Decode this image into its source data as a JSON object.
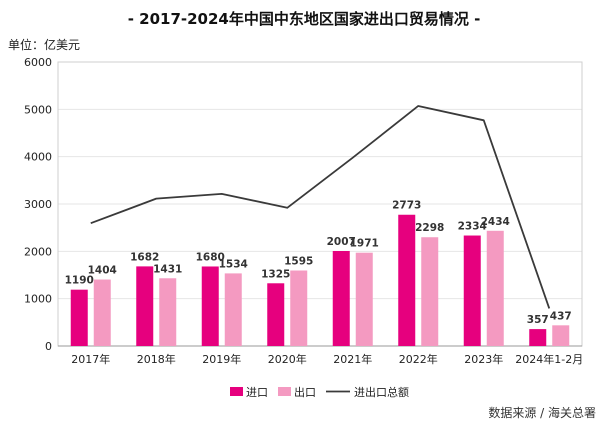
{
  "chart_data": {
    "type": "bar",
    "title": "- 2017-2024年中国中东地区国家进出口贸易情况 -",
    "unit": "单位：亿美元",
    "source": "数据来源 /  海关总署",
    "categories": [
      "2017年",
      "2018年",
      "2019年",
      "2020年",
      "2021年",
      "2022年",
      "2023年",
      "2024年1-2月"
    ],
    "series": [
      {
        "name": "进口",
        "type": "bar",
        "color": "#e6007e",
        "values": [
          1190,
          1682,
          1680,
          1325,
          2007,
          2773,
          2334,
          357
        ]
      },
      {
        "name": "出口",
        "type": "bar",
        "color": "#f49ac1",
        "values": [
          1404,
          1431,
          1534,
          1595,
          1971,
          2298,
          2434,
          437
        ]
      },
      {
        "name": "进出口总额",
        "type": "line",
        "color": "#3a3a3a",
        "values": [
          2594,
          3113,
          3214,
          2920,
          3978,
          5071,
          4768,
          794
        ]
      }
    ],
    "yticks": [
      0,
      1000,
      2000,
      3000,
      4000,
      5000,
      6000
    ],
    "ylim": [
      0,
      6000
    ],
    "legend_position": "bottom"
  }
}
